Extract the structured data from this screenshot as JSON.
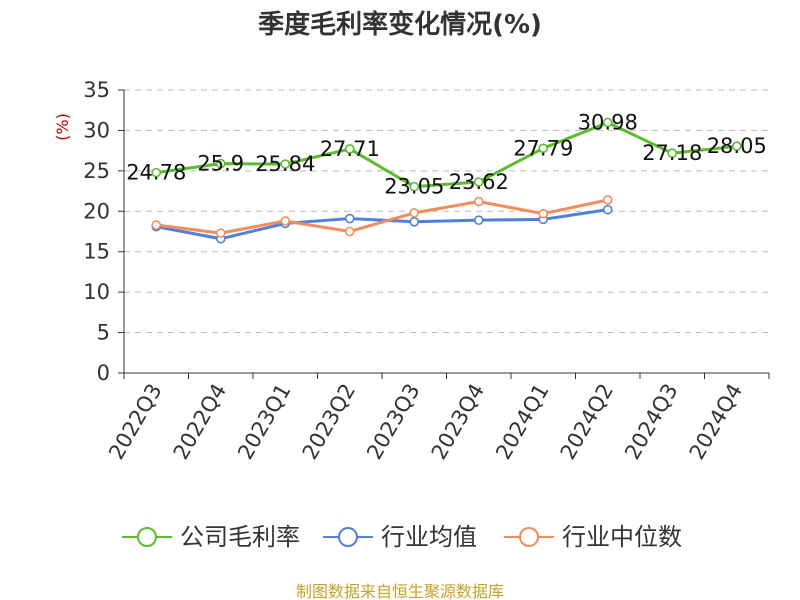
{
  "chart_data": {
    "type": "line",
    "title": "季度毛利率变化情况(%)",
    "ylabel": "(%)",
    "xlabel": "",
    "categories": [
      "2022Q3",
      "2022Q4",
      "2023Q1",
      "2023Q2",
      "2023Q3",
      "2023Q4",
      "2024Q1",
      "2024Q2",
      "2024Q3",
      "2024Q4"
    ],
    "ylim": [
      0,
      35
    ],
    "yticks": [
      0,
      5,
      10,
      15,
      20,
      25,
      30,
      35
    ],
    "grid": true,
    "legend_position": "bottom",
    "series": [
      {
        "name": "公司毛利率",
        "color": "#5bbd2b",
        "show_labels": true,
        "values": [
          24.78,
          25.9,
          25.84,
          27.71,
          23.05,
          23.62,
          27.79,
          30.98,
          27.18,
          28.05
        ]
      },
      {
        "name": "行业均值",
        "color": "#4f7fdf",
        "show_labels": false,
        "values": [
          18.1,
          16.6,
          18.5,
          19.1,
          18.7,
          18.9,
          19.0,
          20.2,
          null,
          null
        ]
      },
      {
        "name": "行业中位数",
        "color": "#f28c5a",
        "show_labels": false,
        "values": [
          18.3,
          17.3,
          18.8,
          17.5,
          19.8,
          21.2,
          19.7,
          21.4,
          null,
          null
        ]
      }
    ]
  },
  "footer": {
    "source": "制图数据来自恒生聚源数据库"
  }
}
